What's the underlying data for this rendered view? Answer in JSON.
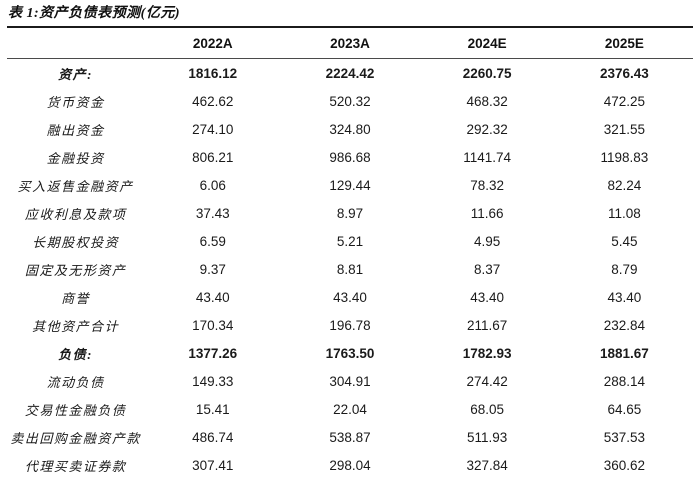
{
  "table": {
    "title": "表 1:资产负债表预测(亿元)",
    "columns": [
      "2022A",
      "2023A",
      "2024E",
      "2025E"
    ],
    "rows": [
      {
        "label": "资产:",
        "bold": true,
        "values": [
          "1816.12",
          "2224.42",
          "2260.75",
          "2376.43"
        ]
      },
      {
        "label": "货币资金",
        "bold": false,
        "values": [
          "462.62",
          "520.32",
          "468.32",
          "472.25"
        ]
      },
      {
        "label": "融出资金",
        "bold": false,
        "values": [
          "274.10",
          "324.80",
          "292.32",
          "321.55"
        ]
      },
      {
        "label": "金融投资",
        "bold": false,
        "values": [
          "806.21",
          "986.68",
          "1141.74",
          "1198.83"
        ]
      },
      {
        "label": "买入返售金融资产",
        "bold": false,
        "values": [
          "6.06",
          "129.44",
          "78.32",
          "82.24"
        ]
      },
      {
        "label": "应收利息及款项",
        "bold": false,
        "values": [
          "37.43",
          "8.97",
          "11.66",
          "11.08"
        ]
      },
      {
        "label": "长期股权投资",
        "bold": false,
        "values": [
          "6.59",
          "5.21",
          "4.95",
          "5.45"
        ]
      },
      {
        "label": "固定及无形资产",
        "bold": false,
        "values": [
          "9.37",
          "8.81",
          "8.37",
          "8.79"
        ]
      },
      {
        "label": "商誉",
        "bold": false,
        "values": [
          "43.40",
          "43.40",
          "43.40",
          "43.40"
        ]
      },
      {
        "label": "其他资产合计",
        "bold": false,
        "values": [
          "170.34",
          "196.78",
          "211.67",
          "232.84"
        ]
      },
      {
        "label": "负债:",
        "bold": true,
        "values": [
          "1377.26",
          "1763.50",
          "1782.93",
          "1881.67"
        ]
      },
      {
        "label": "流动负债",
        "bold": false,
        "values": [
          "149.33",
          "304.91",
          "274.42",
          "288.14"
        ]
      },
      {
        "label": "交易性金融负债",
        "bold": false,
        "values": [
          "15.41",
          "22.04",
          "68.05",
          "64.65"
        ]
      },
      {
        "label": "卖出回购金融资产款",
        "bold": false,
        "values": [
          "486.74",
          "538.87",
          "511.93",
          "537.53"
        ]
      },
      {
        "label": "代理买卖证券款",
        "bold": false,
        "values": [
          "307.41",
          "298.04",
          "327.84",
          "360.62"
        ]
      }
    ]
  }
}
